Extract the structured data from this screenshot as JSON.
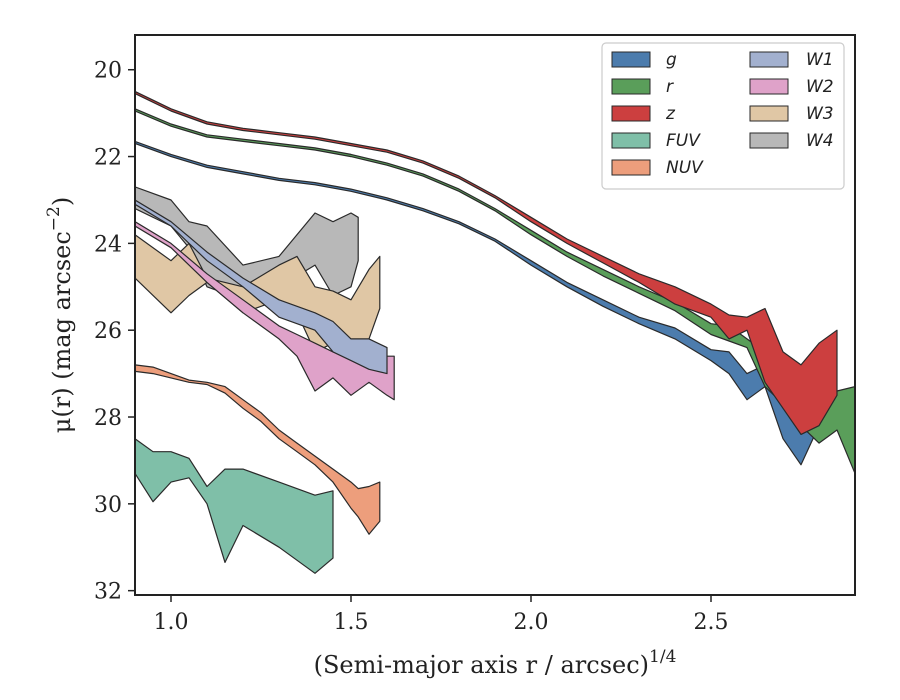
{
  "chart_data": {
    "type": "area",
    "xlabel": "(Semi-major axis r / arcsec)",
    "xlabel_exponent": "1/4",
    "ylabel": "μ(r) (mag arcsec",
    "ylabel_exponent": "−2",
    "ylabel_tail": ")",
    "xlim": [
      0.9,
      2.9
    ],
    "ylim": [
      32.1,
      19.2
    ],
    "y_inverted": true,
    "xticks": [
      1.0,
      1.5,
      2.0,
      2.5
    ],
    "xtick_labels": [
      "1.0",
      "1.5",
      "2.0",
      "2.5"
    ],
    "yticks": [
      20,
      22,
      24,
      26,
      28,
      30,
      32
    ],
    "ytick_labels": [
      "20",
      "22",
      "24",
      "26",
      "28",
      "30",
      "32"
    ],
    "grid": false,
    "legend_position": "top-right",
    "legend_columns": 2,
    "series": [
      {
        "name": "g",
        "color": "#4c7cad",
        "x": [
          0.9,
          1.0,
          1.1,
          1.2,
          1.3,
          1.4,
          1.5,
          1.6,
          1.7,
          1.8,
          1.9,
          2.0,
          2.1,
          2.2,
          2.3,
          2.4,
          2.5,
          2.55,
          2.6,
          2.65,
          2.7,
          2.75,
          2.8
        ],
        "lower": [
          21.65,
          21.95,
          22.2,
          22.35,
          22.5,
          22.6,
          22.75,
          22.95,
          23.2,
          23.5,
          23.9,
          24.4,
          24.9,
          25.3,
          25.7,
          25.95,
          26.45,
          26.5,
          27.0,
          26.8,
          27.4,
          27.6,
          28.0
        ],
        "upper": [
          21.7,
          22.0,
          22.25,
          22.4,
          22.55,
          22.65,
          22.8,
          23.0,
          23.25,
          23.55,
          23.95,
          24.5,
          25.0,
          25.45,
          25.85,
          26.2,
          26.7,
          27.0,
          27.6,
          27.3,
          28.5,
          29.1,
          28.2
        ]
      },
      {
        "name": "r",
        "color": "#5a9e5a",
        "x": [
          0.9,
          1.0,
          1.1,
          1.2,
          1.3,
          1.4,
          1.5,
          1.6,
          1.7,
          1.8,
          1.9,
          2.0,
          2.1,
          2.2,
          2.3,
          2.4,
          2.5,
          2.55,
          2.6,
          2.65,
          2.7,
          2.75,
          2.8,
          2.85,
          2.9
        ],
        "lower": [
          20.9,
          21.25,
          21.5,
          21.6,
          21.7,
          21.8,
          21.95,
          22.15,
          22.4,
          22.75,
          23.2,
          23.7,
          24.2,
          24.6,
          25.0,
          25.35,
          25.85,
          25.9,
          26.2,
          26.5,
          27.3,
          27.1,
          27.9,
          27.4,
          27.3
        ],
        "upper": [
          20.95,
          21.3,
          21.55,
          21.65,
          21.75,
          21.85,
          22.0,
          22.2,
          22.45,
          22.8,
          23.25,
          23.8,
          24.3,
          24.75,
          25.15,
          25.55,
          26.1,
          26.25,
          26.4,
          27.3,
          27.7,
          28.2,
          28.6,
          28.3,
          29.3
        ]
      },
      {
        "name": "z",
        "color": "#cc3f3f",
        "x": [
          0.9,
          1.0,
          1.1,
          1.2,
          1.3,
          1.4,
          1.5,
          1.6,
          1.7,
          1.8,
          1.9,
          2.0,
          2.1,
          2.2,
          2.3,
          2.4,
          2.5,
          2.55,
          2.6,
          2.65,
          2.7,
          2.75,
          2.8,
          2.85
        ],
        "lower": [
          20.5,
          20.9,
          21.2,
          21.35,
          21.45,
          21.55,
          21.7,
          21.85,
          22.1,
          22.45,
          22.9,
          23.4,
          23.9,
          24.3,
          24.7,
          25.0,
          25.4,
          25.65,
          25.7,
          25.5,
          26.5,
          26.8,
          26.3,
          26.0
        ],
        "upper": [
          20.55,
          20.95,
          21.25,
          21.4,
          21.5,
          21.6,
          21.75,
          21.9,
          22.15,
          22.5,
          22.95,
          23.5,
          24.0,
          24.45,
          24.9,
          25.4,
          25.7,
          26.2,
          26.0,
          27.2,
          27.8,
          28.4,
          28.2,
          27.5
        ]
      },
      {
        "name": "FUV",
        "color": "#7fbfa8",
        "x": [
          0.9,
          0.95,
          1.0,
          1.05,
          1.1,
          1.15,
          1.2,
          1.3,
          1.4,
          1.45
        ],
        "lower": [
          28.5,
          28.8,
          28.8,
          28.95,
          29.6,
          29.2,
          29.2,
          29.5,
          29.8,
          29.7
        ],
        "upper": [
          29.3,
          29.95,
          29.5,
          29.4,
          30.0,
          31.35,
          30.5,
          31.0,
          31.6,
          31.25
        ]
      },
      {
        "name": "NUV",
        "color": "#ed9e7c",
        "x": [
          0.9,
          0.95,
          1.0,
          1.05,
          1.1,
          1.15,
          1.2,
          1.25,
          1.3,
          1.35,
          1.4,
          1.45,
          1.5,
          1.52,
          1.55,
          1.58
        ],
        "lower": [
          26.8,
          26.85,
          27.0,
          27.15,
          27.2,
          27.3,
          27.6,
          27.9,
          28.3,
          28.6,
          28.9,
          29.2,
          29.5,
          29.65,
          29.6,
          29.5
        ],
        "upper": [
          26.95,
          27.0,
          27.1,
          27.2,
          27.25,
          27.45,
          27.8,
          28.1,
          28.5,
          28.8,
          29.1,
          29.5,
          30.1,
          30.3,
          30.7,
          30.4
        ]
      },
      {
        "name": "W1",
        "color": "#a2b0cf",
        "x": [
          0.9,
          1.0,
          1.1,
          1.2,
          1.3,
          1.4,
          1.45,
          1.5,
          1.55,
          1.6
        ],
        "lower": [
          23.0,
          23.5,
          24.2,
          24.8,
          25.3,
          25.6,
          25.8,
          26.2,
          26.2,
          26.4
        ],
        "upper": [
          23.1,
          23.6,
          24.4,
          25.0,
          25.7,
          26.0,
          26.5,
          26.7,
          26.9,
          27.0
        ]
      },
      {
        "name": "W2",
        "color": "#dfa2c9",
        "x": [
          0.9,
          1.0,
          1.1,
          1.2,
          1.3,
          1.35,
          1.4,
          1.45,
          1.5,
          1.55,
          1.6,
          1.62
        ],
        "lower": [
          23.5,
          24.0,
          24.7,
          25.3,
          25.9,
          26.1,
          26.3,
          26.5,
          26.6,
          26.5,
          26.6,
          26.6
        ],
        "upper": [
          23.6,
          24.1,
          24.9,
          25.6,
          26.2,
          26.6,
          27.4,
          27.1,
          27.5,
          27.2,
          27.5,
          27.6
        ]
      },
      {
        "name": "W3",
        "color": "#e0c7a5",
        "x": [
          0.9,
          1.0,
          1.05,
          1.1,
          1.2,
          1.3,
          1.35,
          1.4,
          1.45,
          1.5,
          1.55,
          1.58
        ],
        "lower": [
          23.8,
          24.4,
          24.0,
          24.8,
          25.0,
          24.5,
          24.3,
          25.0,
          25.1,
          25.3,
          24.6,
          24.3
        ],
        "upper": [
          24.8,
          25.6,
          25.2,
          24.9,
          25.6,
          25.3,
          25.6,
          26.5,
          26.3,
          26.4,
          26.2,
          25.5
        ]
      },
      {
        "name": "W4",
        "color": "#b8b8b8",
        "x": [
          0.9,
          1.0,
          1.05,
          1.1,
          1.2,
          1.3,
          1.4,
          1.45,
          1.5,
          1.52
        ],
        "lower": [
          22.7,
          23.0,
          23.5,
          23.6,
          24.5,
          24.3,
          23.3,
          23.5,
          23.3,
          23.4
        ],
        "upper": [
          23.2,
          23.6,
          24.1,
          25.0,
          25.3,
          25.0,
          24.5,
          25.2,
          25.0,
          24.4
        ]
      }
    ]
  }
}
